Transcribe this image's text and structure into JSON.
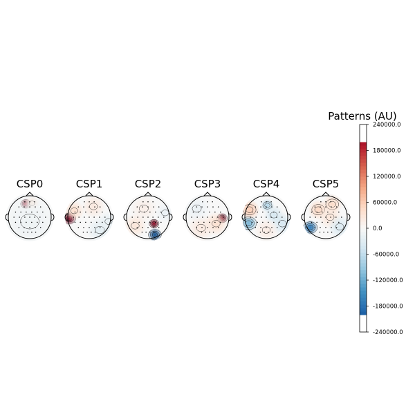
{
  "chart_data": {
    "type": "heatmap",
    "subtype": "eeg-topomap",
    "maps": [
      {
        "title": "CSP0",
        "peaks": [
          {
            "x": -0.18,
            "y": 0.62,
            "value": 210000,
            "r": 0.16
          },
          {
            "x": 0.1,
            "y": 0.65,
            "value": 30000,
            "r": 0.22
          },
          {
            "x": 0.0,
            "y": -0.2,
            "value": -12000,
            "r": 0.9
          }
        ]
      },
      {
        "title": "CSP1",
        "peaks": [
          {
            "x": -0.93,
            "y": -0.05,
            "value": 230000,
            "r": 0.2
          },
          {
            "x": -0.7,
            "y": 0.3,
            "value": 40000,
            "r": 0.3
          },
          {
            "x": 0.2,
            "y": 0.5,
            "value": 25000,
            "r": 0.35
          },
          {
            "x": 0.5,
            "y": -0.6,
            "value": -25000,
            "r": 0.4
          },
          {
            "x": 0.9,
            "y": -0.2,
            "value": -20000,
            "r": 0.3
          }
        ]
      },
      {
        "title": "CSP2",
        "peaks": [
          {
            "x": 0.28,
            "y": -0.3,
            "value": 220000,
            "r": 0.15
          },
          {
            "x": 0.32,
            "y": -0.82,
            "value": -210000,
            "r": 0.2
          },
          {
            "x": -0.2,
            "y": 0.4,
            "value": 15000,
            "r": 0.4
          },
          {
            "x": -0.6,
            "y": -0.4,
            "value": 30000,
            "r": 0.35
          },
          {
            "x": 0.8,
            "y": 0.2,
            "value": -15000,
            "r": 0.3
          }
        ]
      },
      {
        "title": "CSP3",
        "peaks": [
          {
            "x": 0.68,
            "y": -0.05,
            "value": 230000,
            "r": 0.16
          },
          {
            "x": 0.4,
            "y": -0.3,
            "value": 40000,
            "r": 0.35
          },
          {
            "x": -0.3,
            "y": -0.5,
            "value": 25000,
            "r": 0.4
          },
          {
            "x": -0.5,
            "y": 0.4,
            "value": -15000,
            "r": 0.4
          }
        ]
      },
      {
        "title": "CSP4",
        "peaks": [
          {
            "x": -0.82,
            "y": -0.28,
            "value": -110000,
            "r": 0.25
          },
          {
            "x": -0.78,
            "y": 0.35,
            "value": 60000,
            "r": 0.3
          },
          {
            "x": 0.05,
            "y": 0.55,
            "value": -70000,
            "r": 0.2
          },
          {
            "x": 0.35,
            "y": 0.1,
            "value": -40000,
            "r": 0.3
          },
          {
            "x": 0.75,
            "y": -0.3,
            "value": -40000,
            "r": 0.35
          },
          {
            "x": 0.0,
            "y": -0.6,
            "value": 20000,
            "r": 0.35
          }
        ]
      },
      {
        "title": "CSP5",
        "peaks": [
          {
            "x": -0.72,
            "y": -0.48,
            "value": -170000,
            "r": 0.22
          },
          {
            "x": -0.35,
            "y": 0.35,
            "value": 50000,
            "r": 0.3
          },
          {
            "x": 0.3,
            "y": 0.6,
            "value": 45000,
            "r": 0.3
          },
          {
            "x": 0.2,
            "y": 0.0,
            "value": 30000,
            "r": 0.35
          },
          {
            "x": 0.65,
            "y": -0.45,
            "value": -35000,
            "r": 0.35
          }
        ]
      }
    ],
    "colorbar": {
      "label": "Patterns (AU)",
      "vmin": -240000,
      "vmax": 240000,
      "colormap": "RdBu_r",
      "ticks": [
        240000,
        180000,
        120000,
        60000,
        0,
        -60000,
        -120000,
        -180000,
        -240000
      ],
      "tick_labels": [
        "240000.0",
        "180000.0",
        "120000.0",
        "60000.0",
        "0.0",
        "-60000.0",
        "-120000.0",
        "-180000.0",
        "-240000.0"
      ]
    },
    "colors": {
      "strong_negative": "#053061",
      "negative": "#2166ac",
      "light_negative": "#d1e5f0",
      "neutral": "#f7f7f7",
      "light_positive": "#fddbc7",
      "positive": "#d6604d",
      "strong_positive": "#67001f",
      "outline": "#000000",
      "sensor": "#000000"
    }
  }
}
